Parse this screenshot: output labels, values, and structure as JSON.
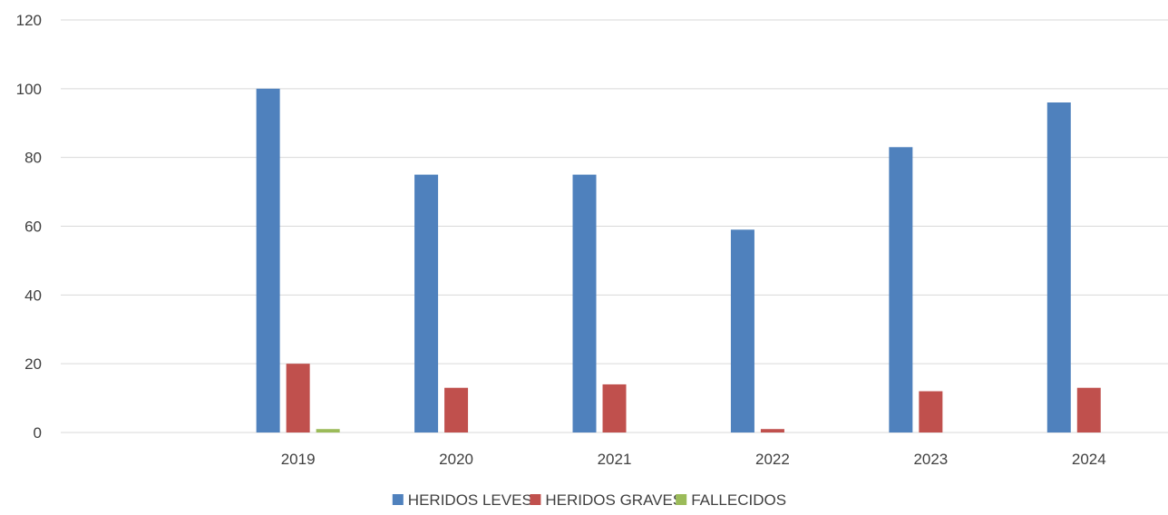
{
  "chart_data": {
    "type": "bar",
    "title": "",
    "xlabel": "",
    "ylabel": "",
    "categories": [
      "",
      "2019",
      "2020",
      "2021",
      "2022",
      "2023",
      "2024"
    ],
    "series": [
      {
        "name": "HERIDOS LEVES",
        "color": "#4f81bd",
        "values": [
          null,
          100,
          75,
          75,
          59,
          83,
          96
        ]
      },
      {
        "name": "HERIDOS GRAVES",
        "color": "#c0504d",
        "values": [
          null,
          20,
          13,
          14,
          1,
          12,
          13
        ]
      },
      {
        "name": "FALLECIDOS",
        "color": "#9bbb59",
        "values": [
          null,
          1,
          0,
          0,
          0,
          0,
          0
        ]
      }
    ],
    "ylim": [
      0,
      120
    ],
    "yticks": [
      "0",
      "20",
      "40",
      "60",
      "80",
      "100",
      "120"
    ],
    "grid": true,
    "legend_position": "bottom-center"
  }
}
